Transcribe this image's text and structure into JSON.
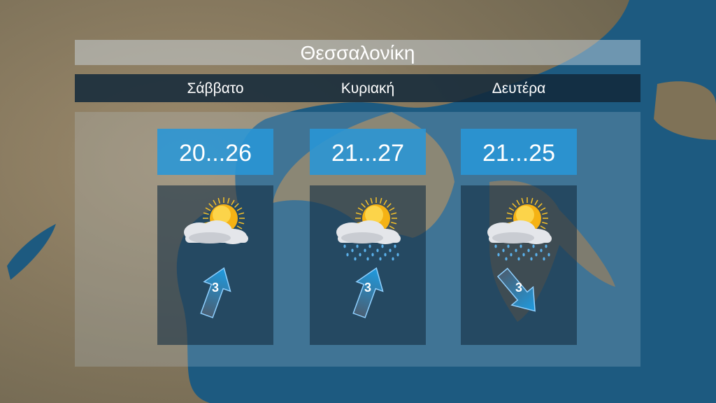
{
  "location": "Θεσσαλονίκη",
  "days": [
    {
      "name": "Σάββατο",
      "temp": "20...26",
      "condition": "partly-cloudy-icon",
      "wind_speed": "3",
      "wind_direction_deg": 20
    },
    {
      "name": "Κυριακή",
      "temp": "21...27",
      "condition": "partly-cloudy-rain-icon",
      "wind_speed": "3",
      "wind_direction_deg": 20
    },
    {
      "name": "Δευτέρα",
      "temp": "21...25",
      "condition": "partly-cloudy-rain-icon",
      "wind_speed": "3",
      "wind_direction_deg": 140
    }
  ],
  "colors": {
    "temp_box": "#2896d7",
    "sea": "#1d5a80",
    "land": "#8c7b5e"
  }
}
